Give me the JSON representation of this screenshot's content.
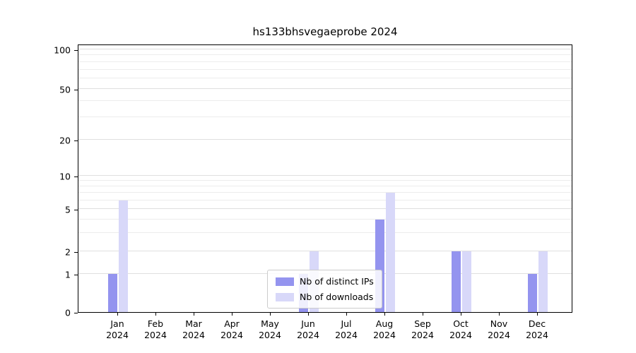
{
  "chart_data": {
    "type": "bar",
    "title": "hs133bhsvegaeprobe 2024",
    "xlabel": "",
    "ylabel": "",
    "year": "2024",
    "categories": [
      "Jan",
      "Feb",
      "Mar",
      "Apr",
      "May",
      "Jun",
      "Jul",
      "Aug",
      "Sep",
      "Oct",
      "Nov",
      "Dec"
    ],
    "series": [
      {
        "name": "Nb of distinct IPs",
        "color": "#9494ef",
        "values": [
          1,
          0,
          0,
          0,
          0,
          1,
          0,
          4,
          0,
          2,
          0,
          1
        ]
      },
      {
        "name": "Nb of downloads",
        "color": "#d8d8f9",
        "values": [
          6,
          0,
          0,
          0,
          0,
          2,
          0,
          7,
          0,
          2,
          0,
          2
        ]
      }
    ],
    "yticks": [
      0,
      1,
      2,
      5,
      10,
      20,
      50,
      100
    ],
    "grid_values": [
      1,
      2,
      3,
      4,
      5,
      6,
      7,
      8,
      9,
      10,
      20,
      30,
      40,
      50,
      60,
      70,
      80,
      90,
      100
    ],
    "scale": "symlog",
    "ylim": [
      0,
      110
    ],
    "grid": true,
    "legend_position": "lower center",
    "colors": {
      "major_grid": "#dfdfdf",
      "minor_grid": "#ececec",
      "axis": "#000000"
    }
  }
}
